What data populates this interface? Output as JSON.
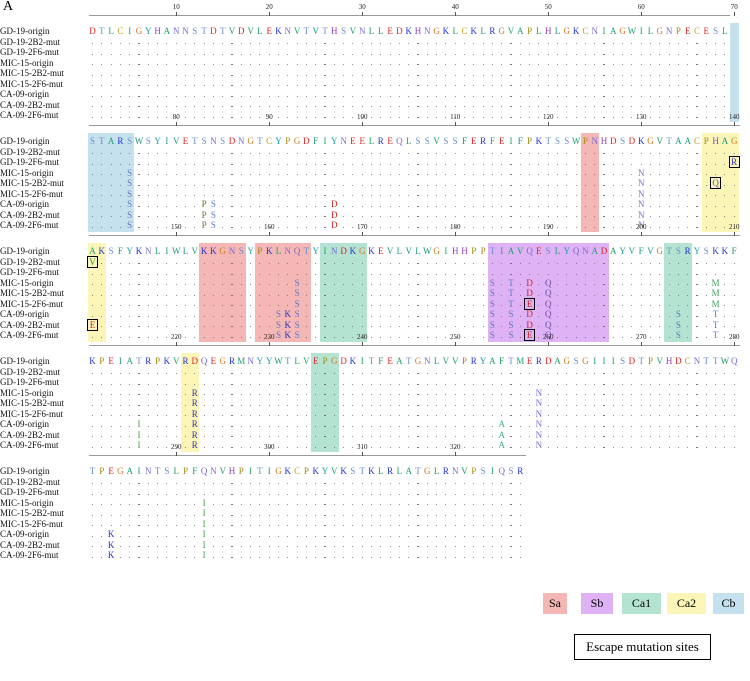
{
  "panel_label": "A",
  "sequence_names": [
    "GD-19-origin",
    "GD-19-2B2-mut",
    "GD-19-2F6-mut",
    "MIC-15-origin",
    "MIC-15-2B2-mut",
    "MIC-15-2F6-mut",
    "CA-09-origin",
    "CA-09-2B2-mut",
    "CA-09-2F6-mut"
  ],
  "blocks": [
    {
      "start": 1,
      "ticks": [
        "10",
        "20",
        "30",
        "40",
        "50",
        "60",
        "70"
      ],
      "reference": "DTLCIGYHANNSTDTVDVLEKNVTVTHSVNLLEDKHNGKLCKLRGVAPLHLGKCNIAGWILGNPECESL",
      "mutations": [],
      "regions": [
        {
          "site": "Cb",
          "from": 70,
          "to": 70
        }
      ],
      "escape_boxes": []
    },
    {
      "start": 71,
      "ticks": [
        "80",
        "90",
        "100",
        "110",
        "120",
        "130",
        "140"
      ],
      "reference": "STARSWSYIVETSNSDNGTCYPGDFIYNEELREQLSSVSSFERFEIFPKTSSWPNHDSDKGVTAACPHAG",
      "mutations": [
        {
          "pos": 75,
          "rows": [
            3,
            4,
            5,
            6,
            7,
            8
          ],
          "aa": "S"
        },
        {
          "pos": 83,
          "rows": [
            6,
            7,
            8
          ],
          "aa": "P"
        },
        {
          "pos": 84,
          "rows": [
            6,
            7,
            8
          ],
          "aa": "S"
        },
        {
          "pos": 97,
          "rows": [
            6,
            7,
            8
          ],
          "aa": "D"
        },
        {
          "pos": 130,
          "rows": [
            3,
            4,
            5,
            6,
            7,
            8
          ],
          "aa": "N"
        },
        {
          "pos": 140,
          "rows": [
            2
          ],
          "aa": "R"
        },
        {
          "pos": 138,
          "rows": [
            4
          ],
          "aa": "Q"
        }
      ],
      "regions": [
        {
          "site": "Cb",
          "from": 71,
          "to": 75
        },
        {
          "site": "Sa",
          "from": 124,
          "to": 125
        },
        {
          "site": "Ca2",
          "from": 137,
          "to": 140
        }
      ],
      "escape_boxes": [
        {
          "pos": 140,
          "row": 2
        },
        {
          "pos": 138,
          "row": 4
        }
      ]
    },
    {
      "start": 141,
      "ticks": [
        "150",
        "160",
        "170",
        "180",
        "190",
        "200",
        "210"
      ],
      "reference": "AKSFYKNLIWLVKKGNSYPKLNQTYINDKGKEVLVLWGIHHPPTIAVQESLYQNADAYVFVGTSRYSKKF",
      "mutations": [
        {
          "pos": 141,
          "rows": [
            1
          ],
          "aa": "V"
        },
        {
          "pos": 141,
          "rows": [
            7
          ],
          "aa": "E"
        },
        {
          "pos": 163,
          "rows": [
            3,
            4,
            5,
            6,
            7,
            8
          ],
          "aa": "S"
        },
        {
          "pos": 161,
          "rows": [
            6,
            7,
            8
          ],
          "aa": "S"
        },
        {
          "pos": 162,
          "rows": [
            6,
            7,
            8
          ],
          "aa": "K"
        },
        {
          "pos": 184,
          "rows": [
            3,
            4,
            5,
            6,
            7,
            8
          ],
          "aa": "S"
        },
        {
          "pos": 186,
          "rows": [
            3,
            4,
            5
          ],
          "aa": "T"
        },
        {
          "pos": 186,
          "rows": [
            6,
            7,
            8
          ],
          "aa": "S"
        },
        {
          "pos": 188,
          "rows": [
            3,
            4
          ],
          "aa": "D"
        },
        {
          "pos": 188,
          "rows": [
            5
          ],
          "aa": "E"
        },
        {
          "pos": 188,
          "rows": [
            6,
            7
          ],
          "aa": "D"
        },
        {
          "pos": 188,
          "rows": [
            8
          ],
          "aa": "E"
        },
        {
          "pos": 190,
          "rows": [
            3,
            4,
            5,
            6,
            7,
            8
          ],
          "aa": "Q"
        },
        {
          "pos": 204,
          "rows": [
            6,
            7,
            8
          ],
          "aa": "S"
        },
        {
          "pos": 208,
          "rows": [
            3,
            4,
            5
          ],
          "aa": "M"
        },
        {
          "pos": 208,
          "rows": [
            6,
            7,
            8
          ],
          "aa": "T"
        }
      ],
      "regions": [
        {
          "site": "Ca2",
          "from": 141,
          "to": 142
        },
        {
          "site": "Sa",
          "from": 153,
          "to": 157
        },
        {
          "site": "Sa",
          "from": 159,
          "to": 164
        },
        {
          "site": "Ca1",
          "from": 166,
          "to": 170
        },
        {
          "site": "Sb",
          "from": 184,
          "to": 196
        },
        {
          "site": "Ca1",
          "from": 203,
          "to": 205
        }
      ],
      "escape_boxes": [
        {
          "pos": 141,
          "row": 1
        },
        {
          "pos": 141,
          "row": 7
        },
        {
          "pos": 188,
          "row": 5
        },
        {
          "pos": 188,
          "row": 8
        }
      ]
    },
    {
      "start": 211,
      "ticks": [
        "220",
        "230",
        "240",
        "250",
        "260",
        "270",
        "280"
      ],
      "reference": "KPEIATRPKVRDQEGRMNYYWTLVEPGDKITFEATGNLVVPRYAFTMERDAGSGIIISDTPVHDCNTTWQ",
      "mutations": [
        {
          "pos": 216,
          "rows": [
            6,
            7,
            8
          ],
          "aa": "I"
        },
        {
          "pos": 222,
          "rows": [
            3,
            4,
            5,
            6,
            7,
            8
          ],
          "aa": "R"
        },
        {
          "pos": 255,
          "rows": [
            6,
            7,
            8
          ],
          "aa": "A"
        },
        {
          "pos": 259,
          "rows": [
            3,
            4,
            5,
            6,
            7,
            8
          ],
          "aa": "N"
        }
      ],
      "regions": [
        {
          "site": "Ca2",
          "from": 221,
          "to": 222
        },
        {
          "site": "Ca1",
          "from": 235,
          "to": 237
        }
      ],
      "escape_boxes": []
    },
    {
      "start": 281,
      "ticks": [
        "290",
        "300",
        "310",
        "320"
      ],
      "reference": "TPEGAINTSLPFQNVHPITIGKCPKYVKSTKLRLATGLRNVPSIQSR",
      "mutations": [
        {
          "pos": 283,
          "rows": [
            6,
            7,
            8
          ],
          "aa": "K"
        },
        {
          "pos": 293,
          "rows": [
            3,
            4,
            5,
            6,
            7,
            8
          ],
          "aa": "I"
        }
      ],
      "regions": [],
      "escape_boxes": []
    }
  ],
  "legend": [
    {
      "label": "Sa",
      "color": "#f4b7b5"
    },
    {
      "label": "Sb",
      "color": "#dfb2f6"
    },
    {
      "label": "Ca1",
      "color": "#b5e3d1"
    },
    {
      "label": "Ca2",
      "color": "#fbf5b8"
    },
    {
      "label": "Cb",
      "color": "#c6e1ee"
    }
  ],
  "escape_legend": "Escape mutation sites",
  "residue_colors": {
    "D": "#e02020",
    "E": "#e02020",
    "K": "#2030d0",
    "R": "#2030d0",
    "H": "#9040c0",
    "S": "#6a8cc8",
    "T": "#6a8cc8",
    "N": "#7a6ad0",
    "Q": "#7a6ad0",
    "G": "#d07a20",
    "P": "#a08a10",
    "C": "#c0a010",
    "A": "#20a070",
    "V": "#20a070",
    "L": "#20a070",
    "I": "#20a070",
    "M": "#20a070",
    "F": "#1a9a6a",
    "W": "#1a9a6a",
    "Y": "#18a0a8"
  },
  "mutation_colors": {
    "S": "#5a78c0",
    "P": "#707030",
    "D": "#d02020",
    "E": "#d02020",
    "N": "#7a6ad0",
    "R": "#3030c0",
    "Q": "#6a50a0",
    "V": "#309030",
    "K": "#2030c0",
    "T": "#5a78c0",
    "M": "#40a060",
    "I": "#40a040",
    "A": "#40b080"
  }
}
